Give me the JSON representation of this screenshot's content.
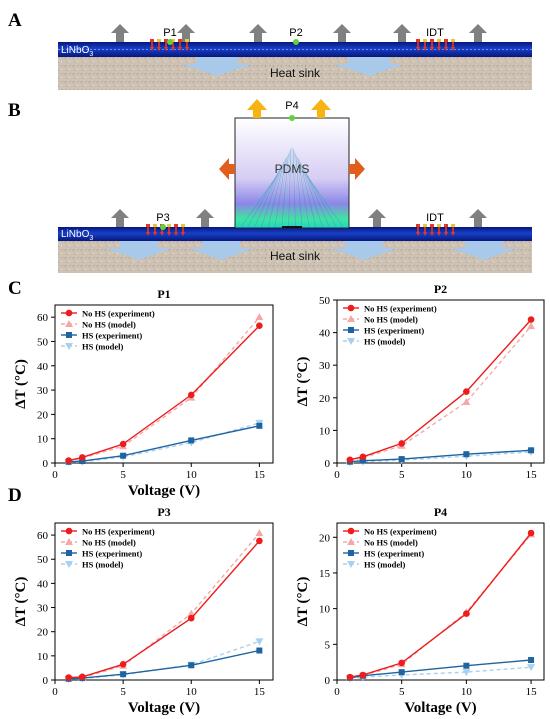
{
  "panels": {
    "a": "A",
    "b": "B",
    "c": "C",
    "d": "D"
  },
  "schematic_a": {
    "labels": {
      "p1": "P1",
      "p2": "P2",
      "idt": "IDT",
      "substrate": "LiNbO",
      "substrate_sub": "3",
      "heatsink": "Heat sink"
    }
  },
  "schematic_b": {
    "labels": {
      "p4": "P4",
      "pdms": "PDMS",
      "p3": "P3",
      "idt": "IDT",
      "substrate": "LiNbO",
      "substrate_sub": "3",
      "heatsink": "Heat sink"
    }
  },
  "colors": {
    "nohs_exp": "#ee1c1c",
    "nohs_model": "#f4a9a8",
    "hs_exp": "#1e64a0",
    "hs_model": "#a9d0ee",
    "substrate": "#0d2fa8",
    "heatsink": "#cbbfb0",
    "arrow_gray": "#808080",
    "arrow_blue": "#a9c9ea",
    "arrow_yellow": "#f6b311",
    "arrow_orange": "#e0601b",
    "idt_red": "#e8371e",
    "idt_yellow": "#e7c93b",
    "probe_green": "#5dd33c"
  },
  "chart_data": [
    {
      "type": "line",
      "title": "P1",
      "xlabel": "Voltage (V)",
      "ylabel": "ΔT (°C)",
      "xlim": [
        0,
        16
      ],
      "ylim": [
        0,
        65
      ],
      "xticks": [
        0,
        5,
        10,
        15
      ],
      "yticks": [
        0,
        10,
        20,
        30,
        40,
        50,
        60
      ],
      "legend_position": "top-left",
      "series": [
        {
          "name": "No HS (experiment)",
          "x": [
            1,
            2,
            5,
            10,
            15
          ],
          "values": [
            1.0,
            2.3,
            7.8,
            28.0,
            56.5
          ]
        },
        {
          "name": "No HS (model)",
          "x": [
            1,
            2,
            5,
            10,
            15
          ],
          "values": [
            0.8,
            2.0,
            6.9,
            26.9,
            60.0
          ]
        },
        {
          "name": "HS (experiment)",
          "x": [
            1,
            2,
            5,
            10,
            15
          ],
          "values": [
            0.5,
            0.8,
            3.0,
            9.3,
            15.3
          ]
        },
        {
          "name": "HS (model)",
          "x": [
            1,
            2,
            5,
            10,
            15
          ],
          "values": [
            0.3,
            0.5,
            2.5,
            8.4,
            16.5
          ]
        }
      ]
    },
    {
      "type": "line",
      "title": "P2",
      "xlabel": "",
      "ylabel": "ΔT (°C)",
      "xlim": [
        0,
        16
      ],
      "ylim": [
        0,
        50
      ],
      "xticks": [
        0,
        5,
        10,
        15
      ],
      "yticks": [
        0,
        10,
        20,
        30,
        40,
        50
      ],
      "legend_position": "top-left",
      "series": [
        {
          "name": "No HS (experiment)",
          "x": [
            1,
            2,
            5,
            10,
            15
          ],
          "values": [
            1.0,
            1.9,
            6.0,
            21.9,
            44.0
          ]
        },
        {
          "name": "No HS (model)",
          "x": [
            1,
            2,
            5,
            10,
            15
          ],
          "values": [
            0.8,
            1.6,
            5.3,
            18.7,
            42.0
          ]
        },
        {
          "name": "HS (experiment)",
          "x": [
            1,
            2,
            5,
            10,
            15
          ],
          "values": [
            0.4,
            0.7,
            1.2,
            2.7,
            3.9
          ]
        },
        {
          "name": "HS (model)",
          "x": [
            1,
            2,
            5,
            10,
            15
          ],
          "values": [
            0.2,
            0.4,
            0.9,
            2.1,
            3.4
          ]
        }
      ]
    },
    {
      "type": "line",
      "title": "P3",
      "xlabel": "Voltage (V)",
      "ylabel": "ΔT (°C)",
      "xlim": [
        0,
        16
      ],
      "ylim": [
        0,
        65
      ],
      "xticks": [
        0,
        5,
        10,
        15
      ],
      "yticks": [
        0,
        10,
        20,
        30,
        40,
        50,
        60
      ],
      "legend_position": "top-left",
      "series": [
        {
          "name": "No HS (experiment)",
          "x": [
            1,
            2,
            5,
            10,
            15
          ],
          "values": [
            1.0,
            1.3,
            6.5,
            25.6,
            57.6
          ]
        },
        {
          "name": "No HS (model)",
          "x": [
            1,
            2,
            5,
            10,
            15
          ],
          "values": [
            0.7,
            1.0,
            5.9,
            27.5,
            60.8
          ]
        },
        {
          "name": "HS (experiment)",
          "x": [
            1,
            2,
            5,
            10,
            15
          ],
          "values": [
            0.5,
            0.8,
            2.4,
            6.1,
            12.2
          ]
        },
        {
          "name": "HS (model)",
          "x": [
            1,
            2,
            5,
            10,
            15
          ],
          "values": [
            0.3,
            0.6,
            2.2,
            6.3,
            16.0
          ]
        }
      ]
    },
    {
      "type": "line",
      "title": "P4",
      "xlabel": "Voltage (V)",
      "ylabel": "ΔT (°C)",
      "xlim": [
        0,
        16
      ],
      "ylim": [
        0,
        22
      ],
      "xticks": [
        0,
        5,
        10,
        15
      ],
      "yticks": [
        0,
        5,
        10,
        15,
        20
      ],
      "legend_position": "top-left",
      "series": [
        {
          "name": "No HS (experiment)",
          "x": [
            1,
            2,
            5,
            10,
            15
          ],
          "values": [
            0.4,
            0.7,
            2.4,
            9.3,
            20.6
          ]
        },
        {
          "name": "No HS (model)",
          "x": [
            1,
            2,
            5,
            10,
            15
          ],
          "values": [
            0.3,
            0.6,
            2.2,
            9.5,
            20.4
          ]
        },
        {
          "name": "HS (experiment)",
          "x": [
            1,
            2,
            5,
            10,
            15
          ],
          "values": [
            0.3,
            0.6,
            1.1,
            2.0,
            2.8
          ]
        },
        {
          "name": "HS (model)",
          "x": [
            1,
            2,
            5,
            10,
            15
          ],
          "values": [
            0.2,
            0.4,
            0.7,
            1.1,
            1.8
          ]
        }
      ]
    }
  ]
}
